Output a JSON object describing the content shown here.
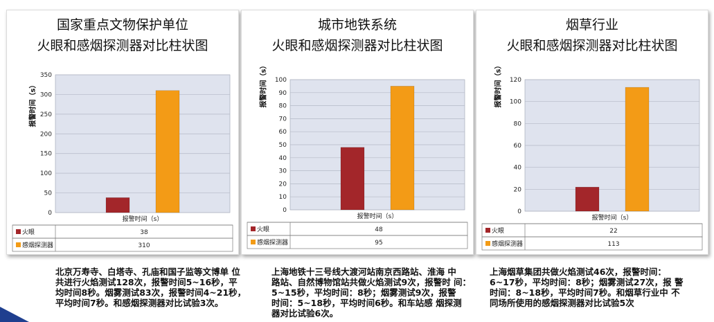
{
  "charts": [
    {
      "title1": "国家重点文物保护单位",
      "title2": "火眼和感烟探测器对比柱状图",
      "ylabel": "报警时间（s）",
      "xlabel": "报警时间（s）",
      "caption": "北京万寿寺、白塔寺、孔庙和国子监等文博单 位\n共进行火焰测试128次，报警时间5~16秒，平\n均时间8秒。烟雾测试83次，报警时间4~21秒，\n平均时间7秒。和感烟探测器对比试验3次。"
    },
    {
      "title1": "城市地铁系统",
      "title2": "火眼和感烟探测器对比柱状图",
      "ylabel": "报警时间（s）",
      "xlabel": "报警时间（s）",
      "caption": "上海地铁十三号线大渡河站南京西路站、淮海 中\n路站、自然博物馆站共做火焰测试9次，报警时 间：\n5~15秒，平均时间：8秒；烟雾测试9次，报警\n时间：5~18秒，平均时间6秒。和车站感 烟探测\n器对比试验6次。"
    },
    {
      "title1": "烟草行业",
      "title2": "火眼和感烟探测器对比柱状图",
      "ylabel": "报警时间（s）",
      "xlabel": "报警时间（s）",
      "caption": "上海烟草集团共做火焰测试46次，报警时间：\n6~17秒，平均时间：8秒；烟雾测试27次，报 警\n时间：8~18秒，平均时间7秒。和烟草行业中 不\n同场所使用的感烟探测器对比试验5次"
    }
  ],
  "chart_data": [
    {
      "type": "bar",
      "title": "国家重点文物保护单位 火眼和感烟探测器对比柱状图",
      "ylabel": "报警时间（s）",
      "xlabel": "报警时间（s）",
      "ylim": [
        0,
        350
      ],
      "yticks": [
        0,
        50,
        100,
        150,
        200,
        250,
        300,
        350
      ],
      "grid": true,
      "series": [
        {
          "name": "火眼",
          "color": "#a3262a",
          "values": [
            38
          ]
        },
        {
          "name": "感烟探测器",
          "color": "#f39b16",
          "values": [
            310
          ]
        }
      ]
    },
    {
      "type": "bar",
      "title": "城市地铁系统 火眼和感烟探测器对比柱状图",
      "ylabel": "报警时间（s）",
      "xlabel": "报警时间（s）",
      "ylim": [
        0,
        100
      ],
      "yticks": [
        0,
        10,
        20,
        30,
        40,
        50,
        60,
        70,
        80,
        90,
        100
      ],
      "grid": true,
      "series": [
        {
          "name": "火眼",
          "color": "#a3262a",
          "values": [
            48
          ]
        },
        {
          "name": "感烟探测器",
          "color": "#f39b16",
          "values": [
            95
          ]
        }
      ]
    },
    {
      "type": "bar",
      "title": "烟草行业 火眼和感烟探测器对比柱状图",
      "ylabel": "报警时间（s）",
      "xlabel": "报警时间（s）",
      "ylim": [
        0,
        120
      ],
      "yticks": [
        0,
        20,
        40,
        60,
        80,
        100,
        120
      ],
      "grid": true,
      "series": [
        {
          "name": "火眼",
          "color": "#a3262a",
          "values": [
            22
          ]
        },
        {
          "name": "感烟探测器",
          "color": "#f39b16",
          "values": [
            113
          ]
        }
      ]
    }
  ]
}
